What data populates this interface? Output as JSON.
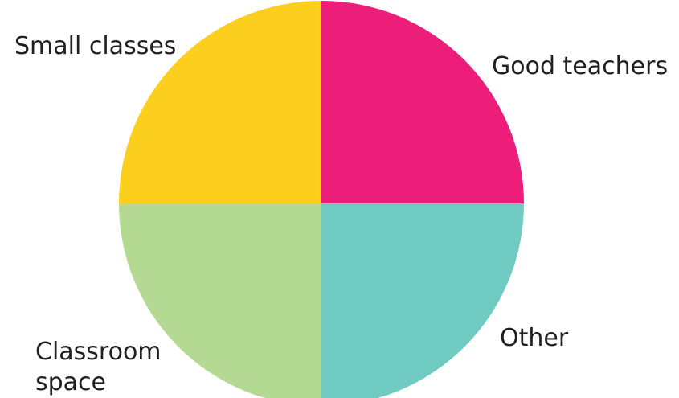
{
  "chart_data": {
    "type": "pie",
    "title": "",
    "slices": [
      {
        "label": "Good teachers",
        "value": 25,
        "color": "#ed1e7a"
      },
      {
        "label": "Other",
        "value": 25,
        "color": "#6fcac2"
      },
      {
        "label": "Classroom space",
        "label_lines": [
          "Classroom",
          "space"
        ],
        "value": 25,
        "color": "#b4d993"
      },
      {
        "label": "Small classes",
        "value": 25,
        "color": "#fccf1f"
      }
    ],
    "legend": "none",
    "labels": "outside"
  }
}
